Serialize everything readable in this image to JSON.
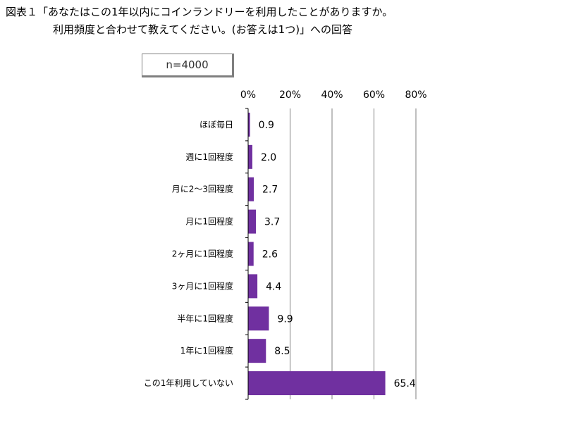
{
  "title": {
    "line1": "図表１「あなたはこの1年以内にコインランドリーを利用したことがありますか。",
    "line2": "利用頻度と合わせて教えてください。(お答えは1つ)」への回答"
  },
  "sample_label": "n=4000",
  "colors": {
    "bar": "#7030a0",
    "grid": "#7f7f7f",
    "axis": "#000000"
  },
  "chart_data": {
    "type": "bar",
    "orientation": "horizontal",
    "categories": [
      "ほぼ毎日",
      "週に1回程度",
      "月に2～3回程度",
      "月に1回程度",
      "2ヶ月に1回程度",
      "3ヶ月に1回程度",
      "半年に1回程度",
      "1年に1回程度",
      "この1年利用していない"
    ],
    "values": [
      0.9,
      2.0,
      2.7,
      3.7,
      2.6,
      4.4,
      9.9,
      8.5,
      65.4
    ],
    "value_labels": [
      "0.9",
      "2.0",
      "2.7",
      "3.7",
      "2.6",
      "4.4",
      "9.9",
      "8.5",
      "65.4"
    ],
    "xlim": [
      0,
      80
    ],
    "ticks": [
      0,
      20,
      40,
      60,
      80
    ],
    "tick_labels": [
      "0%",
      "20%",
      "40%",
      "60%",
      "80%"
    ],
    "axis_position": "top",
    "grid": true
  }
}
